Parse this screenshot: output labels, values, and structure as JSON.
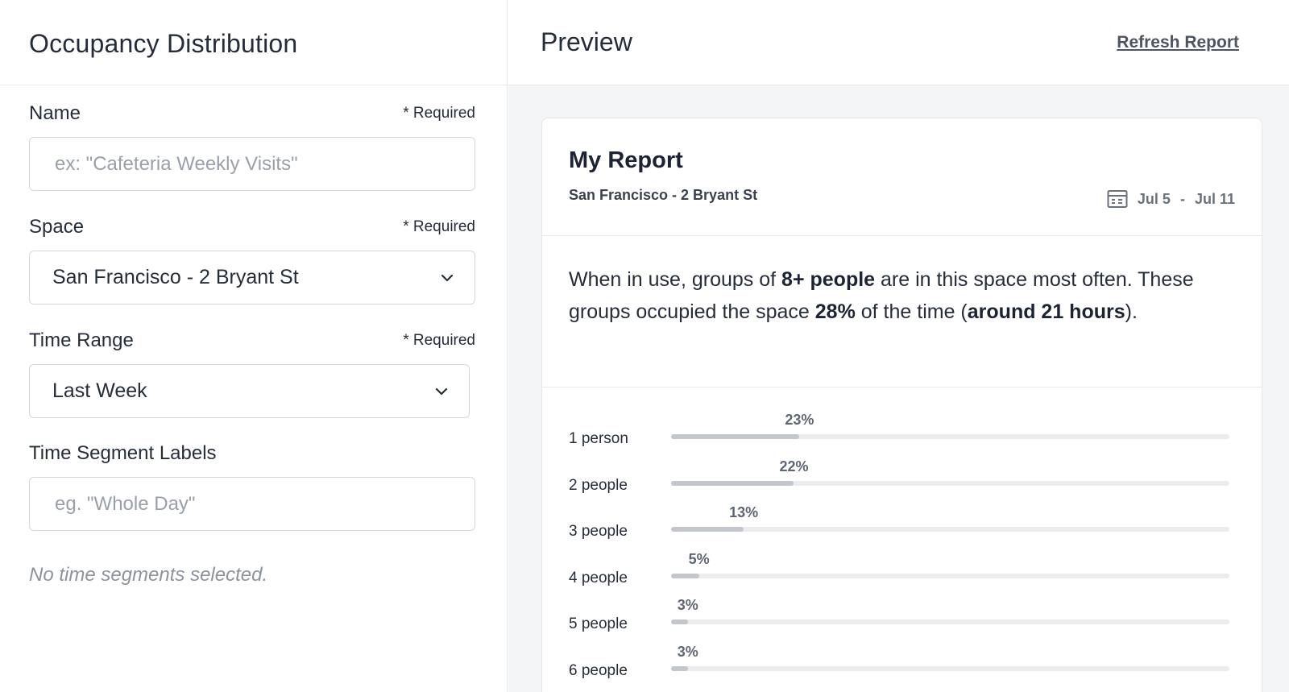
{
  "left": {
    "title": "Occupancy Distribution",
    "name_field": {
      "label": "Name",
      "required": "* Required",
      "placeholder": "ex: \"Cafeteria Weekly Visits\""
    },
    "space_field": {
      "label": "Space",
      "required": "* Required",
      "value": "San Francisco - 2 Bryant St"
    },
    "time_range_field": {
      "label": "Time Range",
      "required": "* Required",
      "value": "Last Week"
    },
    "time_segment_field": {
      "label": "Time Segment Labels",
      "placeholder": "eg. \"Whole Day\""
    },
    "hint": "No time segments selected."
  },
  "right": {
    "title": "Preview",
    "refresh_label": "Refresh Report",
    "card": {
      "title": "My Report",
      "subtitle": "San Francisco - 2 Bryant St",
      "date_start": "Jul 5",
      "date_sep": "-",
      "date_end": "Jul 11",
      "summary": {
        "p1": "When in use, groups of ",
        "b1": "8+ people",
        "p2": " are in this space most often. These groups occupied the space ",
        "b2": "28%",
        "p3": " of the time (",
        "b3": "around 21 hours",
        "p4": ")."
      }
    }
  },
  "chart_data": {
    "type": "bar",
    "orientation": "horizontal",
    "categories": [
      "1 person",
      "2 people",
      "3 people",
      "4 people",
      "5 people",
      "6 people"
    ],
    "values": [
      23,
      22,
      13,
      5,
      3,
      3
    ],
    "value_labels": [
      "23%",
      "22%",
      "13%",
      "5%",
      "3%",
      "3%"
    ],
    "xlim": [
      0,
      100
    ]
  },
  "colors": {
    "bar_fill": "#c3c6cb",
    "bar_track": "#ebeced",
    "panel_bg": "#f4f5f6"
  }
}
